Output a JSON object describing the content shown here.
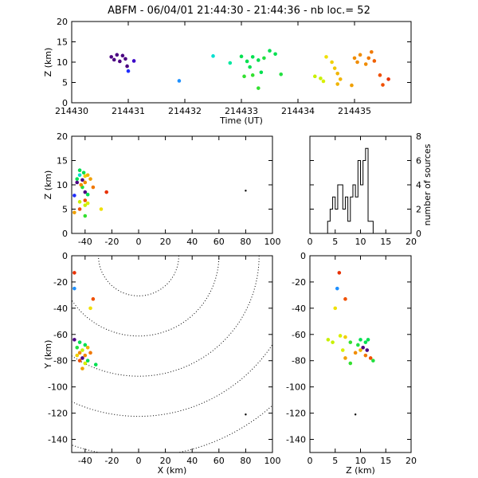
{
  "title": "ABFM - 06/04/01 21:44:30 - 21:44:36 - nb loc.=      52",
  "chart_data": [
    {
      "type": "scatter",
      "id": "time-height",
      "xlabel": "Time (UT)",
      "ylabel": "Z (km)",
      "xlim": [
        214430,
        214436
      ],
      "ylim": [
        0,
        20
      ],
      "xticks": [
        214430,
        214431,
        214432,
        214433,
        214434,
        214435
      ],
      "yticks": [
        0,
        5,
        10,
        15,
        20
      ],
      "points": [
        {
          "x": 214430.7,
          "y": 11.3,
          "color": "#4b0082"
        },
        {
          "x": 214430.75,
          "y": 10.6,
          "color": "#4b0082"
        },
        {
          "x": 214430.8,
          "y": 11.8,
          "color": "#4b0082"
        },
        {
          "x": 214430.85,
          "y": 10.2,
          "color": "#4b0082"
        },
        {
          "x": 214430.9,
          "y": 11.6,
          "color": "#4b0082"
        },
        {
          "x": 214430.95,
          "y": 10.8,
          "color": "#4b0082"
        },
        {
          "x": 214430.98,
          "y": 9.0,
          "color": "#4b0082"
        },
        {
          "x": 214431.1,
          "y": 10.3,
          "color": "#3a00c8"
        },
        {
          "x": 214431.0,
          "y": 7.8,
          "color": "#1f2dff"
        },
        {
          "x": 214431.9,
          "y": 5.4,
          "color": "#1e90ff"
        },
        {
          "x": 214432.5,
          "y": 11.5,
          "color": "#00e0d0"
        },
        {
          "x": 214432.8,
          "y": 9.8,
          "color": "#00e8a0"
        },
        {
          "x": 214433.0,
          "y": 11.4,
          "color": "#00e050"
        },
        {
          "x": 214433.1,
          "y": 10.2,
          "color": "#00e050"
        },
        {
          "x": 214433.15,
          "y": 8.8,
          "color": "#00e050"
        },
        {
          "x": 214433.2,
          "y": 11.3,
          "color": "#00e050"
        },
        {
          "x": 214433.3,
          "y": 10.5,
          "color": "#00e050"
        },
        {
          "x": 214433.35,
          "y": 7.5,
          "color": "#00e050"
        },
        {
          "x": 214433.4,
          "y": 11.0,
          "color": "#22e040"
        },
        {
          "x": 214433.5,
          "y": 12.8,
          "color": "#00e050"
        },
        {
          "x": 214433.6,
          "y": 12.0,
          "color": "#00e050"
        },
        {
          "x": 214433.7,
          "y": 7.0,
          "color": "#22e040"
        },
        {
          "x": 214433.2,
          "y": 6.8,
          "color": "#33e030"
        },
        {
          "x": 214433.3,
          "y": 3.6,
          "color": "#33e030"
        },
        {
          "x": 214433.05,
          "y": 6.5,
          "color": "#33e030"
        },
        {
          "x": 214434.3,
          "y": 6.5,
          "color": "#c8f000"
        },
        {
          "x": 214434.4,
          "y": 6.0,
          "color": "#c8f000"
        },
        {
          "x": 214434.45,
          "y": 5.3,
          "color": "#d8f000"
        },
        {
          "x": 214434.5,
          "y": 11.3,
          "color": "#f0e000"
        },
        {
          "x": 214434.6,
          "y": 10.0,
          "color": "#f0d000"
        },
        {
          "x": 214434.65,
          "y": 8.5,
          "color": "#f0c800"
        },
        {
          "x": 214434.7,
          "y": 7.2,
          "color": "#f0b400"
        },
        {
          "x": 214434.75,
          "y": 5.8,
          "color": "#f0b400"
        },
        {
          "x": 214434.7,
          "y": 4.6,
          "color": "#f0b400"
        },
        {
          "x": 214434.95,
          "y": 4.3,
          "color": "#f0a000"
        },
        {
          "x": 214435.0,
          "y": 11.0,
          "color": "#f08c00"
        },
        {
          "x": 214435.05,
          "y": 10.0,
          "color": "#f08c00"
        },
        {
          "x": 214435.1,
          "y": 11.8,
          "color": "#f08c00"
        },
        {
          "x": 214435.2,
          "y": 9.5,
          "color": "#f08c00"
        },
        {
          "x": 214435.25,
          "y": 11.0,
          "color": "#f07800"
        },
        {
          "x": 214435.3,
          "y": 12.5,
          "color": "#f07800"
        },
        {
          "x": 214435.35,
          "y": 10.3,
          "color": "#f06000"
        },
        {
          "x": 214435.45,
          "y": 6.8,
          "color": "#f05000"
        },
        {
          "x": 214435.6,
          "y": 5.8,
          "color": "#e83000"
        },
        {
          "x": 214435.5,
          "y": 4.4,
          "color": "#f05000"
        }
      ]
    },
    {
      "type": "scatter",
      "id": "x-height",
      "xlabel": "",
      "ylabel": "Z (km)",
      "xlim": [
        -50,
        100
      ],
      "ylim": [
        0,
        20
      ],
      "xticks": [
        -40,
        -20,
        0,
        20,
        40,
        60,
        80,
        100
      ],
      "yticks": [
        0,
        5,
        10,
        15,
        20
      ],
      "points": [
        {
          "x": -46,
          "y": 10.5,
          "color": "#4b0082"
        },
        {
          "x": -42,
          "y": 11.0,
          "color": "#4b0082"
        },
        {
          "x": -40,
          "y": 8.5,
          "color": "#4b0082"
        },
        {
          "x": -48,
          "y": 7.8,
          "color": "#1f2dff"
        },
        {
          "x": -44,
          "y": 12.0,
          "color": "#00e0d0"
        },
        {
          "x": -46,
          "y": 11.2,
          "color": "#00e050"
        },
        {
          "x": -44,
          "y": 13.0,
          "color": "#00e050"
        },
        {
          "x": -41,
          "y": 12.5,
          "color": "#00e050"
        },
        {
          "x": -42,
          "y": 9.5,
          "color": "#22e040"
        },
        {
          "x": -38,
          "y": 8.0,
          "color": "#00e050"
        },
        {
          "x": -40,
          "y": 3.6,
          "color": "#33e030"
        },
        {
          "x": -44,
          "y": 6.5,
          "color": "#c8f000"
        },
        {
          "x": -40,
          "y": 5.8,
          "color": "#c8f000"
        },
        {
          "x": -38,
          "y": 6.2,
          "color": "#d8f000"
        },
        {
          "x": -28,
          "y": 5.0,
          "color": "#f0e000"
        },
        {
          "x": -40,
          "y": 11.8,
          "color": "#f0d000"
        },
        {
          "x": -38,
          "y": 12.0,
          "color": "#f0b400"
        },
        {
          "x": -36,
          "y": 11.2,
          "color": "#f0a000"
        },
        {
          "x": -48,
          "y": 4.3,
          "color": "#f0a000"
        },
        {
          "x": -43,
          "y": 10.0,
          "color": "#f08c00"
        },
        {
          "x": -40,
          "y": 10.5,
          "color": "#f08c00"
        },
        {
          "x": -34,
          "y": 9.5,
          "color": "#f07800"
        },
        {
          "x": -40,
          "y": 6.8,
          "color": "#f05000"
        },
        {
          "x": -24,
          "y": 8.5,
          "color": "#e83000"
        },
        {
          "x": -44,
          "y": 5.0,
          "color": "#f05000"
        },
        {
          "x": 80,
          "y": 8.8,
          "color": "#000000"
        }
      ]
    },
    {
      "type": "histogram",
      "id": "height-histogram",
      "xlabel": "",
      "ylabel": "number of sources",
      "xlim": [
        0,
        20
      ],
      "ylim": [
        0,
        8
      ],
      "xticks": [
        0,
        5,
        10,
        15,
        20
      ],
      "yticks": [
        0,
        2,
        4,
        6,
        8
      ],
      "bin_width": 0.5,
      "bin_start": 3.5,
      "counts": [
        1,
        2,
        3,
        2,
        4,
        4,
        2,
        3,
        1,
        3,
        4,
        3,
        6,
        4,
        6,
        7,
        1,
        1
      ]
    },
    {
      "type": "scatter",
      "id": "plan-view",
      "xlabel": "X (km)",
      "ylabel": "Y (km)",
      "xlim": [
        -50,
        100
      ],
      "ylim": [
        -150,
        0
      ],
      "xticks": [
        -40,
        -20,
        0,
        20,
        40,
        60,
        80,
        100
      ],
      "yticks": [
        0,
        -20,
        -40,
        -60,
        -80,
        -100,
        -120,
        -140
      ],
      "range_rings_km": [
        30,
        60,
        90,
        120,
        150
      ],
      "points": [
        {
          "x": -48,
          "y": -13,
          "color": "#e83000"
        },
        {
          "x": -48,
          "y": -25,
          "color": "#1e90ff"
        },
        {
          "x": -34,
          "y": -33,
          "color": "#f05000"
        },
        {
          "x": -36,
          "y": -40,
          "color": "#f0e000"
        },
        {
          "x": -48,
          "y": -64,
          "color": "#4b0082"
        },
        {
          "x": -44,
          "y": -66,
          "color": "#00e050"
        },
        {
          "x": -46,
          "y": -70,
          "color": "#22e040"
        },
        {
          "x": -40,
          "y": -68,
          "color": "#00e050"
        },
        {
          "x": -42,
          "y": -72,
          "color": "#c8f000"
        },
        {
          "x": -38,
          "y": -70,
          "color": "#f0b400"
        },
        {
          "x": -44,
          "y": -74,
          "color": "#f08c00"
        },
        {
          "x": -40,
          "y": -76,
          "color": "#f08c00"
        },
        {
          "x": -42,
          "y": -78,
          "color": "#4b0082"
        },
        {
          "x": -38,
          "y": -80,
          "color": "#00e050"
        },
        {
          "x": -36,
          "y": -74,
          "color": "#f07800"
        },
        {
          "x": -46,
          "y": -76,
          "color": "#f0d000"
        },
        {
          "x": -40,
          "y": -82,
          "color": "#d8f000"
        },
        {
          "x": -44,
          "y": -80,
          "color": "#f05000"
        },
        {
          "x": -32,
          "y": -83,
          "color": "#00e050"
        },
        {
          "x": -42,
          "y": -86,
          "color": "#f0a000"
        },
        {
          "x": 80,
          "y": -121,
          "color": "#000000"
        }
      ]
    },
    {
      "type": "scatter",
      "id": "z-y-view",
      "xlabel": "Z (km)",
      "ylabel": "",
      "xlim": [
        0,
        20
      ],
      "ylim": [
        -150,
        0
      ],
      "xticks": [
        0,
        5,
        10,
        15,
        20
      ],
      "yticks": [
        0,
        -20,
        -40,
        -60,
        -80,
        -100,
        -120,
        -140
      ],
      "points": [
        {
          "x": 5.8,
          "y": -13,
          "color": "#e83000"
        },
        {
          "x": 5.4,
          "y": -25,
          "color": "#1e90ff"
        },
        {
          "x": 7.0,
          "y": -33,
          "color": "#f05000"
        },
        {
          "x": 5.0,
          "y": -40,
          "color": "#f0e000"
        },
        {
          "x": 3.6,
          "y": -64,
          "color": "#c8f000"
        },
        {
          "x": 4.5,
          "y": -66,
          "color": "#c8f000"
        },
        {
          "x": 6.0,
          "y": -61,
          "color": "#d8f000"
        },
        {
          "x": 7.0,
          "y": -62,
          "color": "#f0d000"
        },
        {
          "x": 8.0,
          "y": -66,
          "color": "#33e030"
        },
        {
          "x": 9.5,
          "y": -68,
          "color": "#22e040"
        },
        {
          "x": 10.0,
          "y": -64,
          "color": "#00e050"
        },
        {
          "x": 11.0,
          "y": -66,
          "color": "#00e050"
        },
        {
          "x": 11.5,
          "y": -64,
          "color": "#00e050"
        },
        {
          "x": 10.5,
          "y": -70,
          "color": "#4b0082"
        },
        {
          "x": 11.3,
          "y": -72,
          "color": "#4b0082"
        },
        {
          "x": 9.0,
          "y": -74,
          "color": "#f08c00"
        },
        {
          "x": 10.0,
          "y": -72,
          "color": "#f0b400"
        },
        {
          "x": 11.0,
          "y": -76,
          "color": "#f07800"
        },
        {
          "x": 12.0,
          "y": -78,
          "color": "#f05000"
        },
        {
          "x": 12.5,
          "y": -80,
          "color": "#22e040"
        },
        {
          "x": 7.0,
          "y": -78,
          "color": "#f0a000"
        },
        {
          "x": 8.0,
          "y": -82,
          "color": "#33e030"
        },
        {
          "x": 6.5,
          "y": -72,
          "color": "#d8f000"
        },
        {
          "x": 9.0,
          "y": -121,
          "color": "#000000"
        }
      ]
    }
  ]
}
